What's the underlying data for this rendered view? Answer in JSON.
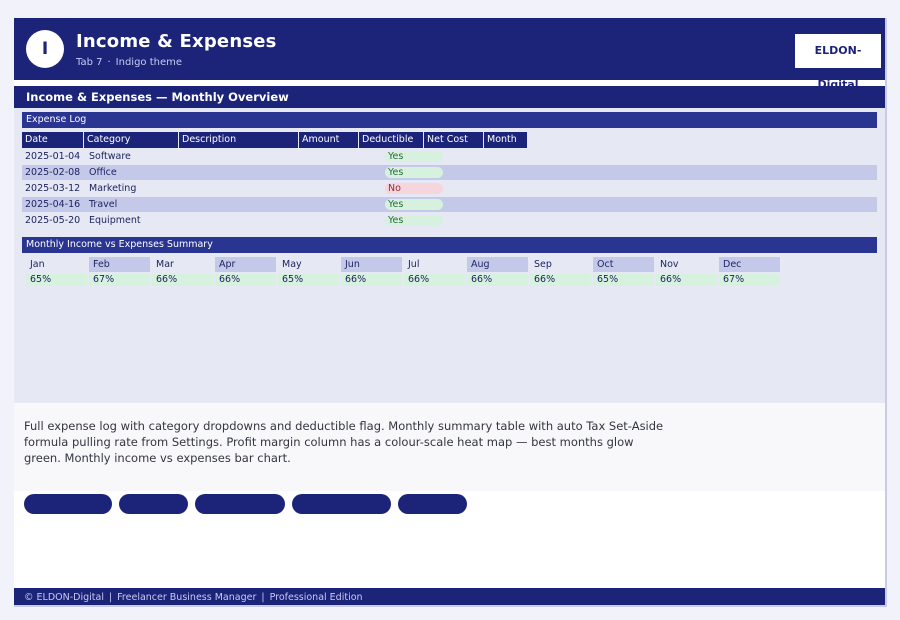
{
  "header": {
    "logo_letter": "I",
    "title": "Income & Expenses",
    "tab": "Tab 7",
    "separator": "·",
    "theme": "Indigo theme",
    "brand": "ELDON-Digital"
  },
  "section": {
    "title": "Income & Expenses — Monthly Overview"
  },
  "expense_log": {
    "title": "Expense Log",
    "columns": [
      "Date",
      "Category",
      "Description",
      "Amount",
      "Deductible",
      "Net Cost",
      "Month"
    ],
    "rows": [
      {
        "date": "2025-01-04",
        "category": "Software",
        "deductible": "Yes"
      },
      {
        "date": "2025-02-08",
        "category": "Office",
        "deductible": "Yes"
      },
      {
        "date": "2025-03-12",
        "category": "Marketing",
        "deductible": "No"
      },
      {
        "date": "2025-04-16",
        "category": "Travel",
        "deductible": "Yes"
      },
      {
        "date": "2025-05-20",
        "category": "Equipment",
        "deductible": "Yes"
      }
    ]
  },
  "summary": {
    "title": "Monthly Income vs Expenses Summary",
    "months": [
      "Jan",
      "Feb",
      "Mar",
      "Apr",
      "May",
      "Jun",
      "Jul",
      "Aug",
      "Sep",
      "Oct",
      "Nov",
      "Dec"
    ],
    "margins": [
      "65%",
      "67%",
      "66%",
      "66%",
      "65%",
      "66%",
      "66%",
      "66%",
      "66%",
      "65%",
      "66%",
      "67%"
    ]
  },
  "description": "Full expense log with category dropdowns and deductible flag. Monthly summary table with auto Tax Set-Aside formula pulling rate from Settings. Profit margin column has a colour-scale heat map — best months glow green. Monthly income vs expenses bar chart.",
  "footer": {
    "copyright": "© ELDON-Digital",
    "separator": "|",
    "product": "Freelancer Business Manager",
    "edition": "Professional Edition"
  },
  "colors": {
    "primary": "#1c247a",
    "panel": "#2a3592",
    "sheet_bg": "#e6e8f4",
    "row_alt": "#c5c9e9",
    "yes": "#d6f1dd",
    "no": "#f6d6dc"
  }
}
